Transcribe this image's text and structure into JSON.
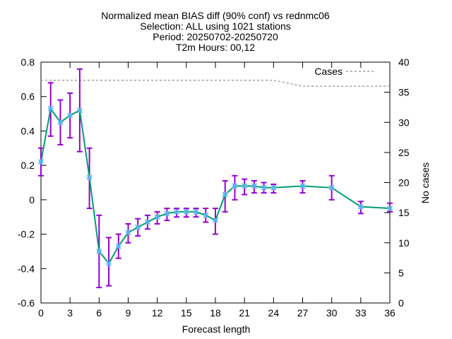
{
  "chart_data": {
    "type": "line",
    "title_lines": [
      "Normalized mean BIAS diff (90% conf) vs rednmc06",
      "Selection: ALL using  1021 stations",
      "Period: 20250702-20250720",
      "T2m   Hours: 00,12"
    ],
    "xlabel": "Forecast length",
    "ylabel": "",
    "y2label": "No cases",
    "xlim": [
      0,
      36
    ],
    "ylim": [
      -0.6,
      0.8
    ],
    "y2lim": [
      0,
      40
    ],
    "x_ticks": [
      0,
      3,
      6,
      9,
      12,
      15,
      18,
      21,
      24,
      27,
      30,
      33,
      36
    ],
    "y_ticks": [
      -0.6,
      -0.4,
      -0.2,
      0,
      0.2,
      0.4,
      0.6,
      0.8
    ],
    "y_tick_labels": [
      "-0.6",
      "-0.4",
      "-0.2",
      "0",
      "0.2",
      "0.4",
      "0.6",
      "0.8"
    ],
    "y2_ticks": [
      0,
      5,
      10,
      15,
      20,
      25,
      30,
      35,
      40
    ],
    "grid": false,
    "legend_position": "top-right",
    "series": [
      {
        "role": "bias",
        "color": "#009e73",
        "error_color": "#9400d3",
        "marker_color": "#56b4e9",
        "points": [
          {
            "x": 0,
            "y": 0.22,
            "lo": 0.14,
            "hi": 0.3
          },
          {
            "x": 1,
            "y": 0.53,
            "lo": 0.37,
            "hi": 0.68
          },
          {
            "x": 2,
            "y": 0.45,
            "lo": 0.32,
            "hi": 0.58
          },
          {
            "x": 3,
            "y": 0.49,
            "lo": 0.36,
            "hi": 0.62
          },
          {
            "x": 4,
            "y": 0.52,
            "lo": 0.28,
            "hi": 0.76
          },
          {
            "x": 5,
            "y": 0.13,
            "lo": -0.05,
            "hi": 0.3
          },
          {
            "x": 6,
            "y": -0.3,
            "lo": -0.51,
            "hi": -0.09
          },
          {
            "x": 7,
            "y": -0.37,
            "lo": -0.5,
            "hi": -0.22
          },
          {
            "x": 8,
            "y": -0.27,
            "lo": -0.34,
            "hi": -0.2
          },
          {
            "x": 9,
            "y": -0.19,
            "lo": -0.25,
            "hi": -0.14
          },
          {
            "x": 10,
            "y": -0.16,
            "lo": -0.21,
            "hi": -0.11
          },
          {
            "x": 11,
            "y": -0.13,
            "lo": -0.17,
            "hi": -0.09
          },
          {
            "x": 12,
            "y": -0.1,
            "lo": -0.14,
            "hi": -0.07
          },
          {
            "x": 13,
            "y": -0.08,
            "lo": -0.12,
            "hi": -0.05
          },
          {
            "x": 14,
            "y": -0.07,
            "lo": -0.1,
            "hi": -0.05
          },
          {
            "x": 15,
            "y": -0.07,
            "lo": -0.1,
            "hi": -0.05
          },
          {
            "x": 16,
            "y": -0.07,
            "lo": -0.1,
            "hi": -0.05
          },
          {
            "x": 17,
            "y": -0.09,
            "lo": -0.13,
            "hi": -0.05
          },
          {
            "x": 18,
            "y": -0.12,
            "lo": -0.2,
            "hi": -0.05
          },
          {
            "x": 19,
            "y": 0.03,
            "lo": -0.07,
            "hi": 0.11
          },
          {
            "x": 20,
            "y": 0.08,
            "lo": 0.0,
            "hi": 0.14
          },
          {
            "x": 21,
            "y": 0.08,
            "lo": 0.03,
            "hi": 0.12
          },
          {
            "x": 22,
            "y": 0.08,
            "lo": 0.04,
            "hi": 0.11
          },
          {
            "x": 23,
            "y": 0.07,
            "lo": 0.04,
            "hi": 0.1
          },
          {
            "x": 24,
            "y": 0.07,
            "lo": 0.04,
            "hi": 0.09
          },
          {
            "x": 27,
            "y": 0.08,
            "lo": 0.04,
            "hi": 0.11
          },
          {
            "x": 30,
            "y": 0.07,
            "lo": 0.0,
            "hi": 0.14
          },
          {
            "x": 33,
            "y": -0.04,
            "lo": -0.08,
            "hi": -0.01
          },
          {
            "x": 36,
            "y": -0.05,
            "lo": -0.07,
            "hi": -0.02
          }
        ]
      },
      {
        "name": "Cases",
        "axis": "y2",
        "color": "#a0a0a0",
        "dashed": true,
        "x": [
          0,
          24,
          27,
          36
        ],
        "y": [
          37,
          37,
          36,
          36
        ]
      }
    ]
  }
}
